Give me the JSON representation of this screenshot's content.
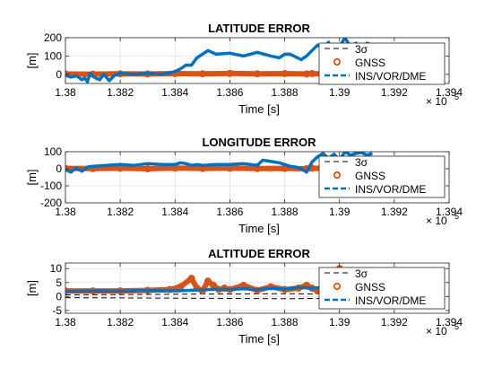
{
  "figure": {
    "colors": {
      "gnss": "#D95319",
      "ins": "#0072BD",
      "sigma": "#000000",
      "axis": "#262626",
      "grid": "#dfdfdf",
      "background": "#ffffff"
    }
  },
  "chart_data": [
    {
      "type": "line",
      "title": "LATITUDE ERROR",
      "xlabel": "Time [s]",
      "ylabel": "[m]",
      "x_exponent_label": "× 10",
      "x_exponent": "5",
      "xlim": [
        138000,
        139400
      ],
      "ylim": [
        -50,
        200
      ],
      "xticks": [
        "1.38",
        "1.382",
        "1.384",
        "1.386",
        "1.388",
        "1.39",
        "1.392",
        "1.394"
      ],
      "xtick_values": [
        138000,
        138200,
        138400,
        138600,
        138800,
        139000,
        139200,
        139400
      ],
      "yticks": [
        "0",
        "100",
        "200"
      ],
      "ytick_values": [
        0,
        100,
        200
      ],
      "grid": true,
      "legend_position": "right",
      "legend": [
        "3σ",
        "GNSS",
        "INS/VOR/DME"
      ],
      "series": [
        {
          "name": "3σ",
          "style": "dashed",
          "x": [
            138000,
            139120
          ],
          "y": [
            0,
            0
          ]
        },
        {
          "name": "GNSS",
          "style": "markers",
          "x": [
            138000,
            138100,
            138200,
            138300,
            138400,
            138500,
            138600,
            138700,
            138800,
            138880,
            138900,
            138950,
            139000,
            139050,
            139100,
            139120
          ],
          "y": [
            2,
            1,
            3,
            2,
            4,
            3,
            5,
            3,
            4,
            2,
            4,
            1,
            3,
            2,
            1,
            2
          ]
        },
        {
          "name": "INS/VOR/DME",
          "style": "thick-line",
          "x": [
            138000,
            138020,
            138040,
            138060,
            138070,
            138080,
            138090,
            138100,
            138110,
            138125,
            138140,
            138160,
            138180,
            138200,
            138250,
            138300,
            138350,
            138400,
            138420,
            138440,
            138460,
            138480,
            138500,
            138520,
            138550,
            138600,
            138650,
            138700,
            138750,
            138780,
            138800,
            138820,
            138840,
            138860,
            138880,
            138900,
            138920,
            138940,
            138960,
            138980,
            139000,
            139020,
            139040,
            139060,
            139080,
            139100,
            139120
          ],
          "y": [
            -5,
            -15,
            -8,
            -30,
            -20,
            -40,
            5,
            -10,
            -20,
            -30,
            0,
            -35,
            -5,
            5,
            0,
            5,
            0,
            15,
            30,
            50,
            50,
            90,
            110,
            130,
            110,
            115,
            100,
            120,
            100,
            90,
            110,
            110,
            95,
            80,
            100,
            130,
            160,
            140,
            175,
            110,
            150,
            200,
            150,
            170,
            130,
            170,
            160
          ]
        }
      ]
    },
    {
      "type": "line",
      "title": "LONGITUDE ERROR",
      "xlabel": "Time [s]",
      "ylabel": "[m]",
      "x_exponent_label": "× 10",
      "x_exponent": "5",
      "xlim": [
        138000,
        139400
      ],
      "ylim": [
        -200,
        100
      ],
      "xticks": [
        "1.38",
        "1.382",
        "1.384",
        "1.386",
        "1.388",
        "1.39",
        "1.392",
        "1.394"
      ],
      "xtick_values": [
        138000,
        138200,
        138400,
        138600,
        138800,
        139000,
        139200,
        139400
      ],
      "yticks": [
        "-200",
        "-100",
        "0",
        "100"
      ],
      "ytick_values": [
        -200,
        -100,
        0,
        100
      ],
      "grid": true,
      "legend_position": "right",
      "legend": [
        "3σ",
        "GNSS",
        "INS/VOR/DME"
      ],
      "series": [
        {
          "name": "3σ",
          "style": "dashed",
          "x": [
            138000,
            139120
          ],
          "y": [
            0,
            0
          ]
        },
        {
          "name": "GNSS",
          "style": "markers",
          "x": [
            138000,
            138100,
            138200,
            138300,
            138400,
            138500,
            138600,
            138700,
            138800,
            138880,
            138900,
            138950,
            139000,
            139050,
            139100,
            139120
          ],
          "y": [
            2,
            1,
            3,
            0,
            4,
            2,
            3,
            1,
            2,
            0,
            3,
            1,
            2,
            0,
            1,
            2
          ]
        },
        {
          "name": "INS/VOR/DME",
          "style": "thick-line",
          "x": [
            138000,
            138020,
            138040,
            138060,
            138080,
            138100,
            138150,
            138200,
            138250,
            138300,
            138350,
            138400,
            138420,
            138440,
            138460,
            138480,
            138500,
            138550,
            138600,
            138650,
            138700,
            138720,
            138740,
            138760,
            138780,
            138800,
            138820,
            138840,
            138860,
            138880,
            138900,
            138920,
            138940,
            138960,
            138980,
            139000,
            139020,
            139040,
            139060,
            139080,
            139100,
            139120
          ],
          "y": [
            -5,
            -20,
            5,
            -15,
            10,
            15,
            20,
            25,
            20,
            30,
            25,
            25,
            35,
            30,
            20,
            25,
            20,
            25,
            25,
            30,
            20,
            50,
            45,
            40,
            35,
            25,
            15,
            10,
            0,
            -20,
            40,
            70,
            90,
            60,
            85,
            50,
            100,
            80,
            90,
            95,
            80,
            90
          ]
        }
      ]
    },
    {
      "type": "line",
      "title": "ALTITUDE ERROR",
      "xlabel": "Time [s]",
      "ylabel": "[m]",
      "x_exponent_label": "× 10",
      "x_exponent": "5",
      "xlim": [
        138000,
        139400
      ],
      "ylim": [
        -6,
        12
      ],
      "xticks": [
        "1.38",
        "1.382",
        "1.384",
        "1.386",
        "1.388",
        "1.39",
        "1.392",
        "1.394"
      ],
      "xtick_values": [
        138000,
        138200,
        138400,
        138600,
        138800,
        139000,
        139200,
        139400
      ],
      "yticks": [
        "-5",
        "0",
        "5",
        "10"
      ],
      "ytick_values": [
        -5,
        0,
        5,
        10
      ],
      "grid": true,
      "legend_position": "right",
      "legend": [
        "3σ",
        "GNSS",
        "INS/VOR/DME"
      ],
      "series": [
        {
          "name": "3σ",
          "style": "dashed",
          "x": [
            138000,
            138200,
            138400,
            138600,
            138800,
            139000,
            139120
          ],
          "y": [
            -0.4,
            -0.5,
            -0.6,
            -0.7,
            -0.8,
            -0.6,
            -0.5
          ]
        },
        {
          "name": "3σ",
          "style": "dashed",
          "x": [
            138000,
            138200,
            138400,
            138600,
            138800,
            139000,
            139120
          ],
          "y": [
            0.6,
            0.7,
            0.8,
            0.9,
            1.0,
            0.8,
            0.7
          ]
        },
        {
          "name": "GNSS",
          "style": "markers",
          "x": [
            138000,
            138100,
            138200,
            138300,
            138380,
            138420,
            138460,
            138480,
            138500,
            138520,
            138540,
            138560,
            138580,
            138600,
            138650,
            138700,
            138750,
            138800,
            138850,
            138880,
            138900,
            138920,
            138960,
            138980,
            139000,
            139030,
            139060,
            139090,
            139120
          ],
          "y": [
            2,
            2,
            2,
            2.2,
            2.5,
            3.5,
            6.5,
            3,
            2,
            5.5,
            4,
            2.5,
            3,
            2.5,
            4,
            2.2,
            3.5,
            2.5,
            3,
            4,
            3,
            2,
            3,
            9,
            10,
            2,
            1,
            3,
            1.5
          ]
        },
        {
          "name": "INS/VOR/DME",
          "style": "thick-line",
          "x": [
            138000,
            138100,
            138200,
            138300,
            138400,
            138500,
            138550,
            138600,
            138650,
            138700,
            138750,
            138800,
            138850,
            138900,
            138950,
            139000,
            139050,
            139100,
            139120
          ],
          "y": [
            1.8,
            2,
            1.9,
            2.1,
            2,
            2.4,
            2.6,
            2.5,
            2.8,
            2.4,
            3,
            2.6,
            3.3,
            2.9,
            3.5,
            2.7,
            3,
            2.8,
            3
          ]
        }
      ]
    }
  ]
}
